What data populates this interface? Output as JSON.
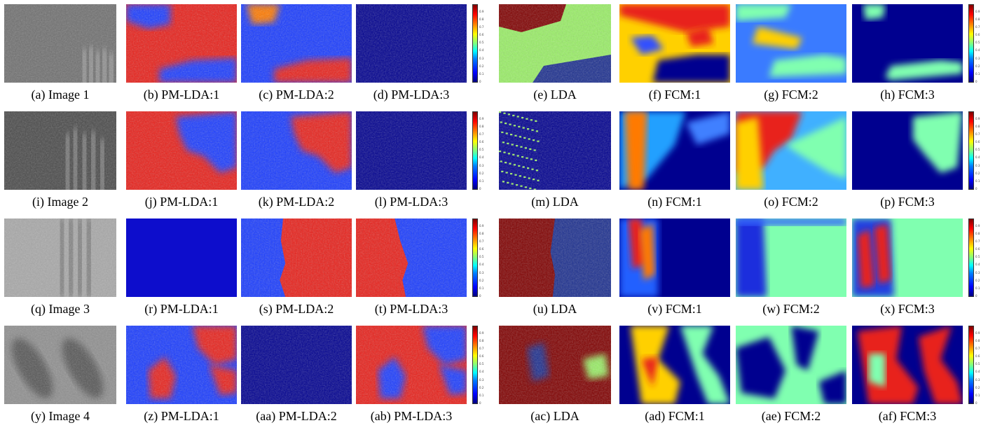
{
  "captions": [
    [
      "(a) Image 1",
      "(b) PM-LDA:1",
      "(c) PM-LDA:2",
      "(d) PM-LDA:3",
      "(e) LDA",
      "(f) FCM:1",
      "(g) FCM:2",
      "(h) FCM:3"
    ],
    [
      "(i) Image 2",
      "(j) PM-LDA:1",
      "(k) PM-LDA:2",
      "(l) PM-LDA:3",
      "(m) LDA",
      "(n) FCM:1",
      "(o) FCM:2",
      "(p) FCM:3"
    ],
    [
      "(q) Image 3",
      "(r) PM-LDA:1",
      "(s) PM-LDA:2",
      "(t) PM-LDA:3",
      "(u) LDA",
      "(v) FCM:1",
      "(w) FCM:2",
      "(x) FCM:3"
    ],
    [
      "(y) Image 4",
      "(z) PM-LDA:1",
      "(aa) PM-LDA:2",
      "(ab) PM-LDA:3",
      "(ac) LDA",
      "(ad) FCM:1",
      "(ae) FCM:2",
      "(af) FCM:3"
    ]
  ],
  "colorbar_ticks": [
    "0",
    "0.1",
    "0.2",
    "0.3",
    "0.4",
    "0.5",
    "0.6",
    "0.7",
    "0.8",
    "0.9"
  ],
  "colors": {
    "jet_dark_blue": "#00008f",
    "jet_blue": "#1a3cff",
    "jet_red": "#e8201a",
    "jet_dark_red": "#800000",
    "lda_green": "#99ee66",
    "jet_cyan_green": "#80ffb0",
    "jet_yellow": "#ffd000",
    "jet_orange": "#ff7a00"
  }
}
